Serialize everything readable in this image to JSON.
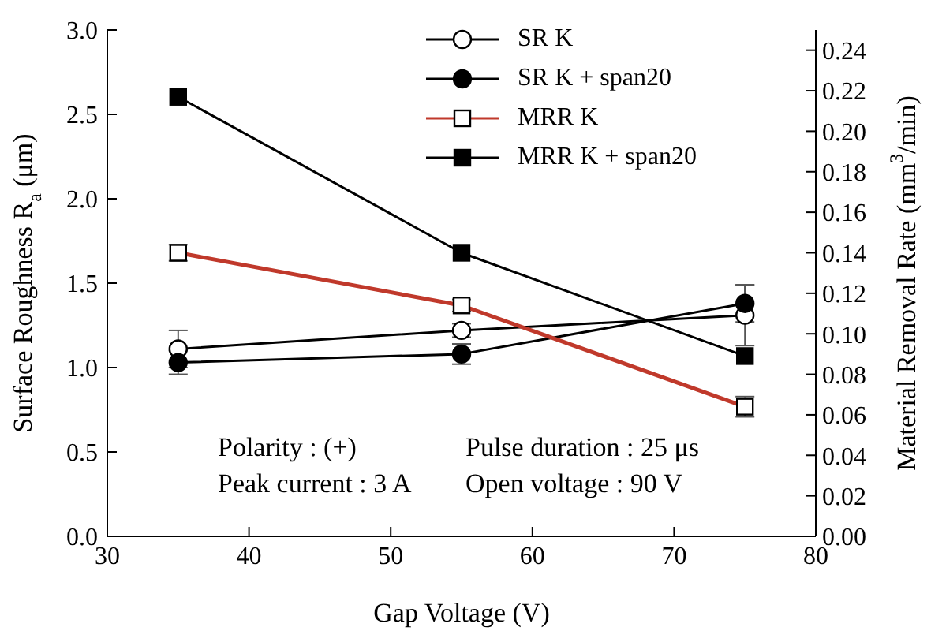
{
  "chart_data": {
    "type": "line",
    "xlabel": "Gap Voltage (V)",
    "ylabel": "Surface Roughness R$_{a}$ (μm)",
    "y2label": "Material Removal Rate (mm$^{3}$/min)",
    "x": [
      35,
      55,
      75
    ],
    "series": [
      {
        "name": "SR K",
        "color": "#000000",
        "marker": "circle",
        "values": [
          1.11,
          1.22,
          1.31
        ],
        "errors": [
          0.11,
          0.04,
          0.18
        ]
      },
      {
        "name": "SR K + span20",
        "color": "#000000",
        "marker": "circle",
        "values": [
          1.03,
          1.08,
          1.38
        ],
        "errors": [
          0.07,
          0.06,
          0.11
        ]
      },
      {
        "name": "MRR K",
        "color": "#c0392b",
        "marker": "square",
        "axis": "y2",
        "values": [
          0.14,
          0.114,
          0.064
        ],
        "errors": [
          0.004,
          0.003,
          0.005
        ]
      },
      {
        "name": "MRR K + span20",
        "color": "#000000",
        "marker": "square",
        "axis": "y2",
        "values": [
          0.217,
          0.14,
          0.089
        ]
      }
    ],
    "xlim": [
      30,
      80
    ],
    "xticks": [
      30,
      40,
      50,
      60,
      70,
      80
    ],
    "ylim": [
      0,
      3.0
    ],
    "yticks": [
      {
        "value": 0,
        "label": "0.0"
      },
      0.5,
      {
        "value": 1,
        "label": "1.0"
      },
      1.5,
      {
        "value": 2,
        "label": "2.0"
      },
      2.5,
      {
        "value": 3,
        "label": "3.0"
      }
    ],
    "y2lim": [
      0,
      0.25
    ],
    "y2ticks": [
      {
        "value": 0,
        "label": "0.00"
      },
      0.02,
      0.04,
      0.06,
      0.08,
      {
        "value": 0.1,
        "label": "0.10"
      },
      0.12,
      0.14,
      0.16,
      0.18,
      {
        "value": 0.2,
        "label": "0.20"
      },
      0.22,
      0.24
    ],
    "legend": "top right",
    "grid": false,
    "annotations": [
      "Polarity : (+)",
      "Peak current : 3 A",
      "Pulse duration : 25 μs",
      "Open voltage : 90 V"
    ]
  }
}
